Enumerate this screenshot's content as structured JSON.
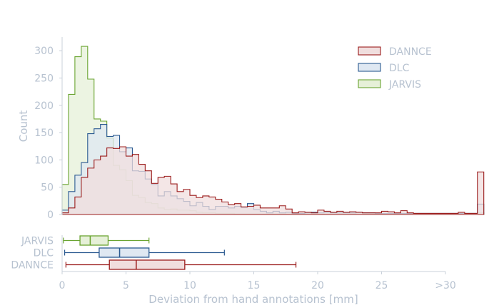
{
  "chart_data": {
    "type": "histogram+boxplot",
    "title": "",
    "xlabel": "Deviation from hand annotations [mm]",
    "ylabel": "Count",
    "xlim": [
      0,
      30
    ],
    "ylim": [
      0,
      325
    ],
    "x_ticks": [
      0,
      5,
      10,
      15,
      20,
      25,
      30
    ],
    "x_tick_labels": [
      "0",
      "5",
      "10",
      "15",
      "20",
      "25",
      ">30"
    ],
    "y_ticks": [
      0,
      50,
      100,
      150,
      200,
      250,
      300
    ],
    "y_tick_labels": [
      "0",
      "50",
      "100",
      "150",
      "200",
      "250",
      "300"
    ],
    "legend_position": "top-right",
    "bin_width": 0.5,
    "series": [
      {
        "name": "DANNCE",
        "color": "#9b1c1c",
        "fill": "#f0dede",
        "counts": [
          3,
          12,
          32,
          68,
          85,
          100,
          107,
          122,
          121,
          124,
          107,
          110,
          92,
          80,
          57,
          68,
          70,
          56,
          42,
          46,
          35,
          31,
          34,
          32,
          28,
          23,
          18,
          20,
          14,
          15,
          17,
          12,
          12,
          12,
          16,
          10,
          3,
          5,
          4,
          3,
          8,
          6,
          4,
          6,
          4,
          5,
          4,
          3,
          3,
          3,
          6,
          5,
          3,
          7,
          3,
          2,
          2,
          2,
          2,
          2,
          2,
          2,
          4,
          2,
          2,
          78
        ]
      },
      {
        "name": "DLC",
        "color": "#2b5a91",
        "fill": "#dfe8f2",
        "counts": [
          8,
          42,
          72,
          95,
          148,
          157,
          165,
          143,
          145,
          115,
          122,
          80,
          79,
          65,
          55,
          34,
          42,
          34,
          29,
          24,
          16,
          22,
          15,
          9,
          15,
          15,
          12,
          15,
          13,
          20,
          9,
          6,
          3,
          6,
          3,
          4,
          2,
          2,
          3,
          4,
          3,
          4,
          3,
          3,
          3,
          3,
          4,
          3,
          3,
          2,
          2,
          2,
          2,
          2,
          2,
          2,
          2,
          2,
          2,
          2,
          2,
          2,
          2,
          2,
          2,
          19
        ]
      },
      {
        "name": "JARVIS",
        "color": "#6aa431",
        "fill": "#e6f0d8",
        "counts": [
          55,
          220,
          289,
          308,
          248,
          175,
          171,
          140,
          90,
          82,
          62,
          35,
          31,
          22,
          20,
          12,
          9,
          10,
          8,
          8,
          7,
          4,
          3,
          3,
          2,
          2,
          2,
          1,
          1,
          1,
          1,
          1,
          1,
          1,
          1,
          1,
          1,
          1,
          1,
          1,
          1,
          1,
          1,
          1,
          1,
          1,
          1,
          1,
          1,
          1,
          1,
          1,
          1,
          1,
          1,
          1,
          1,
          1,
          1,
          1,
          1,
          1,
          1,
          1,
          1,
          3
        ]
      }
    ],
    "boxplots": [
      {
        "name": "JARVIS",
        "whisker_low": 0.1,
        "q1": 1.4,
        "median": 2.2,
        "q3": 3.6,
        "whisker_high": 6.8
      },
      {
        "name": "DLC",
        "whisker_low": 0.2,
        "q1": 2.9,
        "median": 4.5,
        "q3": 6.8,
        "whisker_high": 12.7
      },
      {
        "name": "DANNCE",
        "whisker_low": 0.3,
        "q1": 3.7,
        "median": 5.8,
        "q3": 9.6,
        "whisker_high": 18.3
      }
    ]
  }
}
